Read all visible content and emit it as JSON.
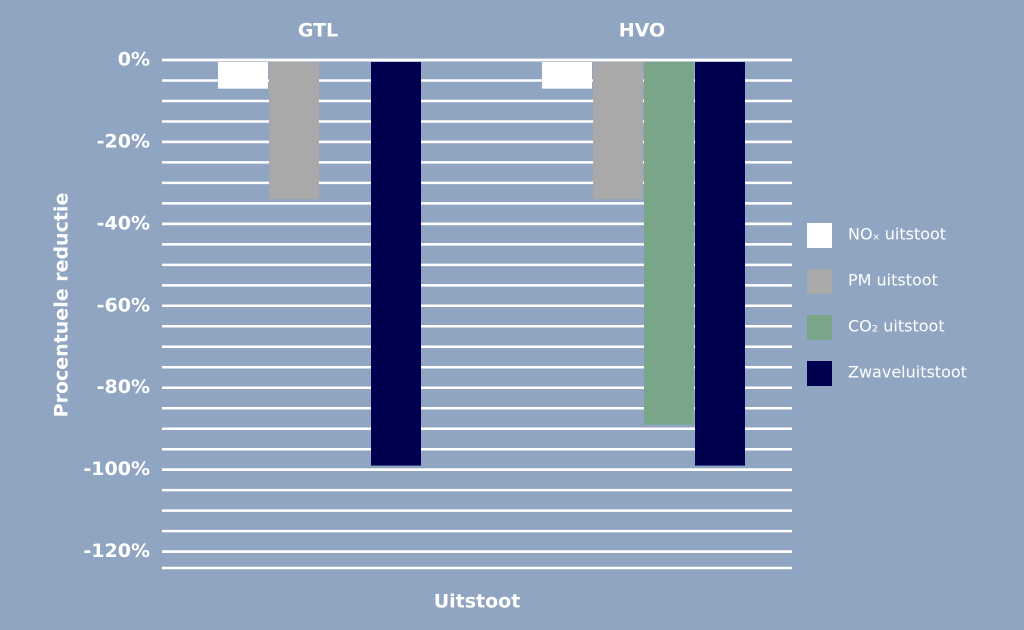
{
  "chart_data": {
    "type": "bar",
    "categories": [
      "GTL",
      "HVO"
    ],
    "series": [
      {
        "name": "NOₓ uitstoot",
        "color": "#ffffff",
        "values": [
          -7,
          -7
        ]
      },
      {
        "name": "PM uitstoot",
        "color": "#a9a9a9",
        "values": [
          -34,
          -34
        ]
      },
      {
        "name": "CO₂ uitstoot",
        "color": "#79a688",
        "values": [
          null,
          -89
        ]
      },
      {
        "name": "Zwaveluitstoot",
        "color": "#000050",
        "values": [
          -99,
          -99
        ]
      }
    ],
    "ylim": [
      0,
      -124
    ],
    "yticks": [
      {
        "value": 0,
        "label": "0%"
      },
      {
        "value": -20,
        "label": "-20%"
      },
      {
        "value": -40,
        "label": "-40%"
      },
      {
        "value": -60,
        "label": "-60%"
      },
      {
        "value": -80,
        "label": "-80%"
      },
      {
        "value": -100,
        "label": "-100%"
      },
      {
        "value": -120,
        "label": "-120%"
      }
    ],
    "grid_step": 5,
    "ylabel": "Procentuele reductie",
    "xlabel": "Uitstoot",
    "legend": "right"
  }
}
